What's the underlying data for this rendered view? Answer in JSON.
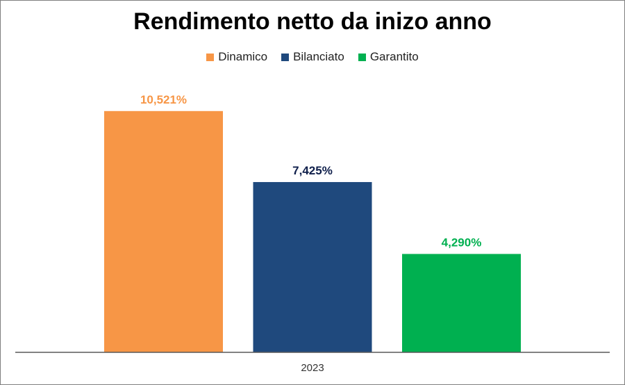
{
  "chart_data": {
    "type": "bar",
    "title": "Rendimento netto da inizo anno",
    "categories": [
      "2023"
    ],
    "series": [
      {
        "name": "Dinamico",
        "values": [
          10.521
        ],
        "label": "10,521%",
        "color": "#F79646"
      },
      {
        "name": "Bilanciato",
        "values": [
          7.425
        ],
        "label": "7,425%",
        "color": "#1F497D"
      },
      {
        "name": "Garantito",
        "values": [
          4.29
        ],
        "label": "4,290%",
        "color": "#00B050"
      }
    ],
    "label_colors": [
      "#F79646",
      "#0F1F4B",
      "#00B050"
    ],
    "xlabel": "",
    "ylabel": "",
    "ylim": [
      0,
      11
    ],
    "grid": false,
    "legend": "top-center"
  }
}
